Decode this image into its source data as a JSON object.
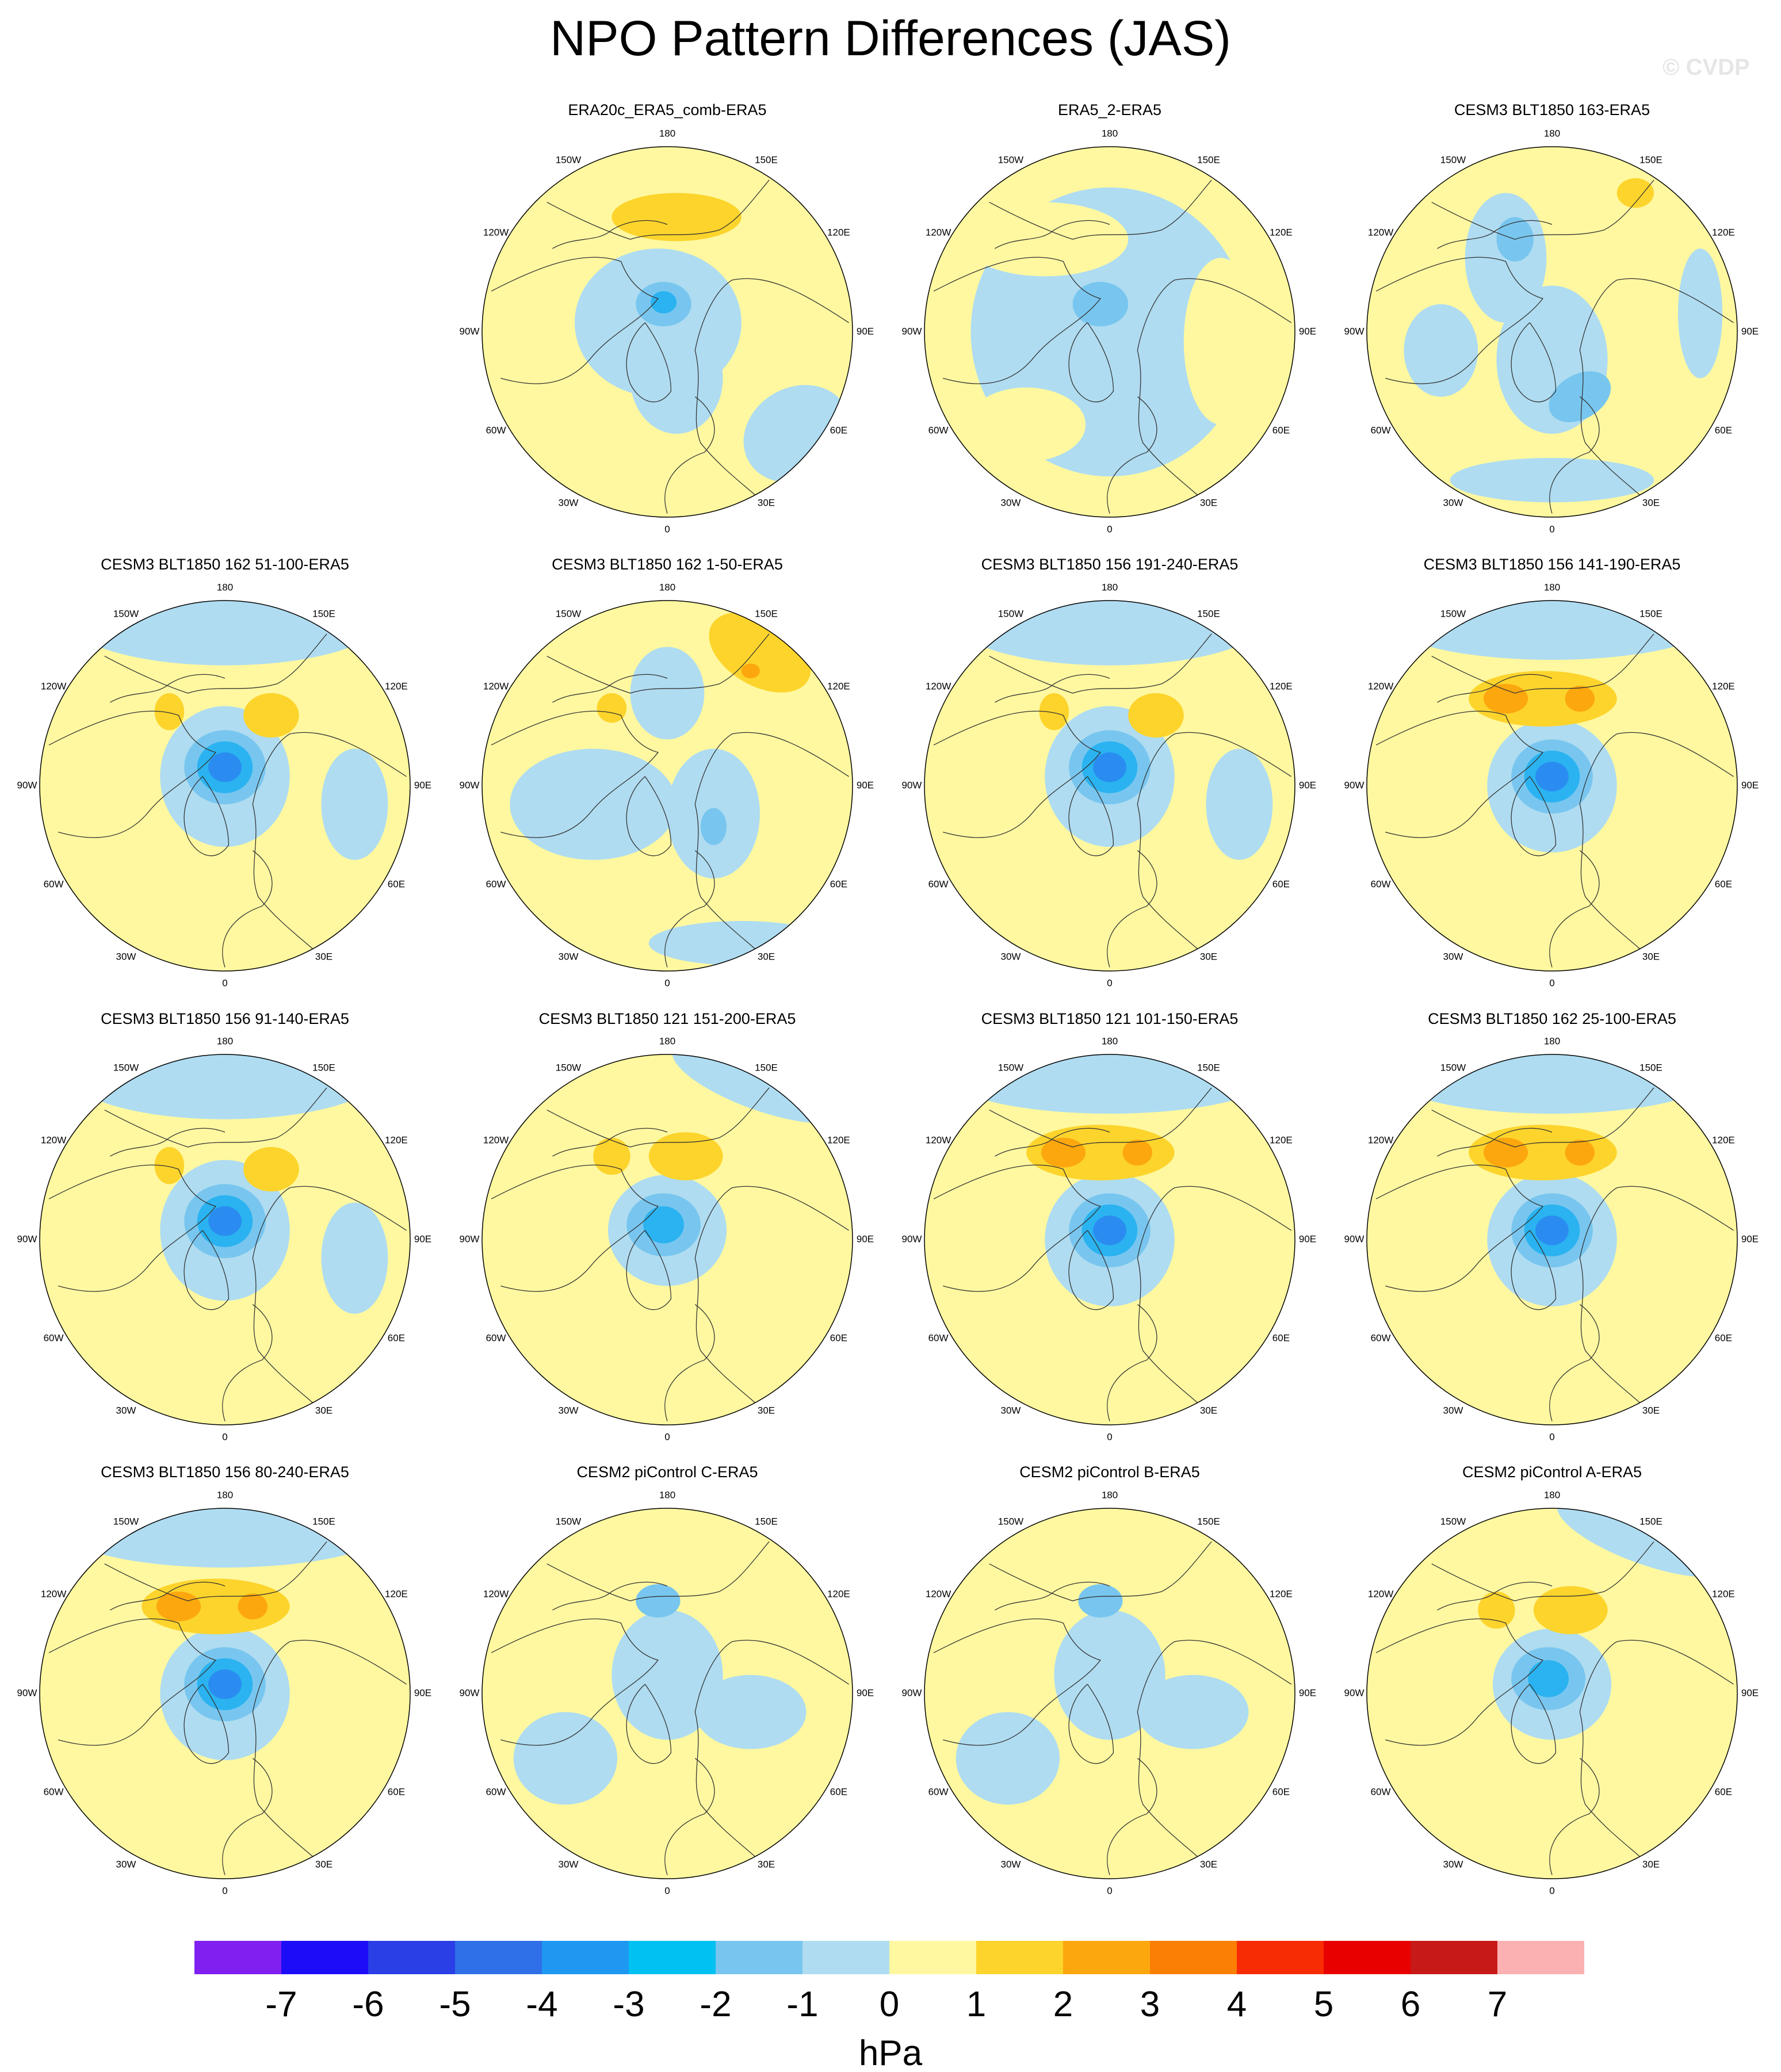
{
  "title": "NPO Pattern Differences (JAS)",
  "watermark": "© CVDP",
  "longitude_labels": [
    "180",
    "150E",
    "120E",
    "90E",
    "60E",
    "30E",
    "0",
    "30W",
    "60W",
    "90W",
    "120W",
    "150W"
  ],
  "colors": {
    "yellow": "#fff8a0",
    "light_blue": "#afdcf1",
    "mid_blue": "#78c6ef",
    "sky": "#2ab3f0",
    "blue": "#2a8cf0",
    "deep_blue": "#3a5fe6",
    "orange_light": "#fdd42c",
    "orange": "#fca70e",
    "coast": "#333333"
  },
  "panels": [
    {
      "title": "ERA20c_ERA5_comb-ERA5",
      "pattern": "weak_low",
      "position": "row1-col2"
    },
    {
      "title": "ERA5_2-ERA5",
      "pattern": "mostly_blue",
      "position": "row1-col3"
    },
    {
      "title": "CESM3 BLT1850 163-ERA5",
      "pattern": "mixed_blue",
      "position": "row1-col4"
    },
    {
      "title": "CESM3 BLT1850 162 51-100-ERA5",
      "pattern": "strong_low",
      "position": "row2-col1"
    },
    {
      "title": "CESM3 BLT1850 162 1-50-ERA5",
      "pattern": "mixed",
      "position": "row2-col2"
    },
    {
      "title": "CESM3 BLT1850 156 191-240-ERA5",
      "pattern": "strong_low",
      "position": "row2-col3"
    },
    {
      "title": "CESM3 BLT1850 156 141-190-ERA5",
      "pattern": "strong_low_highs",
      "position": "row2-col4"
    },
    {
      "title": "CESM3 BLT1850 156 91-140-ERA5",
      "pattern": "strong_low",
      "position": "row3-col1"
    },
    {
      "title": "CESM3 BLT1850 121 151-200-ERA5",
      "pattern": "moderate_low",
      "position": "row3-col2"
    },
    {
      "title": "CESM3 BLT1850 121 101-150-ERA5",
      "pattern": "strong_low_highs",
      "position": "row3-col3"
    },
    {
      "title": "CESM3 BLT1850 162 25-100-ERA5",
      "pattern": "strong_low_highs",
      "position": "row3-col4"
    },
    {
      "title": "CESM3 BLT1850 156 80-240-ERA5",
      "pattern": "strong_low_highs",
      "position": "row4-col1"
    },
    {
      "title": "CESM2 piControl C-ERA5",
      "pattern": "weak_mixed",
      "position": "row4-col2"
    },
    {
      "title": "CESM2 piControl B-ERA5",
      "pattern": "weak_mixed",
      "position": "row4-col3"
    },
    {
      "title": "CESM2 piControl A-ERA5",
      "pattern": "moderate_low",
      "position": "row4-col4"
    }
  ],
  "colorbar": {
    "units": "hPa",
    "ticks": [
      "-7",
      "-6",
      "-5",
      "-4",
      "-3",
      "-2",
      "-1",
      "0",
      "1",
      "2",
      "3",
      "4",
      "5",
      "6",
      "7"
    ],
    "colors": [
      "#7f1ff0",
      "#1d0cf7",
      "#2a3fe6",
      "#2f6fe8",
      "#1e98f1",
      "#00c1f2",
      "#78c6ef",
      "#afdcf1",
      "#fff8a0",
      "#fdd42c",
      "#fca70e",
      "#fb7f05",
      "#f82c04",
      "#e80000",
      "#c81919",
      "#fbb1b1"
    ]
  }
}
